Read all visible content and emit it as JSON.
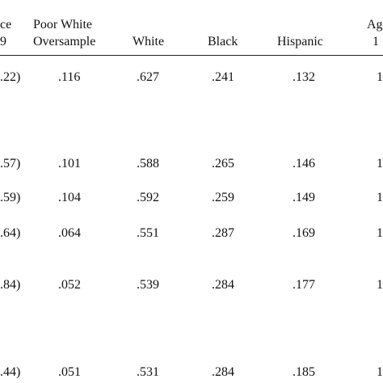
{
  "headers": {
    "col0": [
      "ce",
      "9"
    ],
    "col1": [
      "Poor White",
      "Oversample"
    ],
    "col2": "White",
    "col3": "Black",
    "col4": "Hispanic",
    "col5": [
      "Ag",
      "1"
    ]
  },
  "rows": [
    [
      ".22)",
      ".116",
      ".627",
      ".241",
      ".132",
      "1"
    ],
    [
      ".57)",
      ".101",
      ".588",
      ".265",
      ".146",
      "1"
    ],
    [
      ".59)",
      ".104",
      ".592",
      ".259",
      ".149",
      "1"
    ],
    [
      ".64)",
      ".064",
      ".551",
      ".287",
      ".169",
      "1"
    ],
    [
      ".84)",
      ".052",
      ".539",
      ".284",
      ".177",
      "1"
    ],
    [
      ".44)",
      ".051",
      ".531",
      ".284",
      ".185",
      "1"
    ]
  ]
}
